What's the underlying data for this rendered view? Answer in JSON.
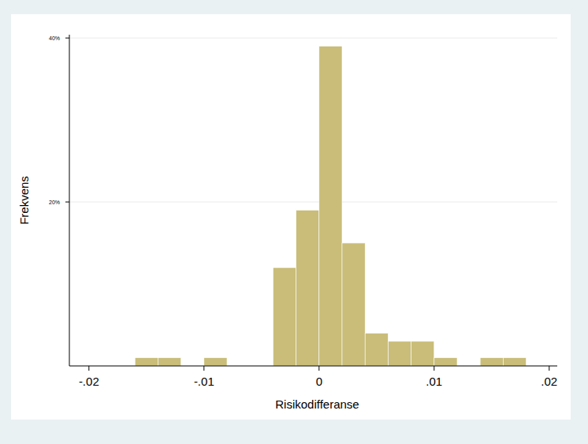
{
  "chart_data": {
    "type": "histogram",
    "x_label": "Risikodifferanse",
    "y_label": "Frekvens",
    "bins": [
      -0.016,
      -0.014,
      -0.012,
      -0.01,
      -0.008,
      -0.006,
      -0.004,
      -0.002,
      0,
      0.002,
      0.004,
      0.006,
      0.008,
      0.01,
      0.012,
      0.014,
      0.016,
      0.018
    ],
    "values": [
      1,
      1,
      0,
      1,
      0,
      0,
      12,
      19,
      39,
      15,
      4,
      3,
      3,
      1,
      0,
      1,
      1
    ],
    "color": "#c9bd79",
    "xlim": [
      -0.0217,
      0.0207
    ],
    "xticks": [
      {
        "value": -0.02,
        "label": "-.02"
      },
      {
        "value": -0.01,
        "label": "-.01"
      },
      0,
      {
        "value": 0.01,
        "label": ".01"
      },
      {
        "value": 0.02,
        "label": ".02"
      }
    ],
    "ylim": [
      0,
      40.4
    ],
    "yticks": [
      {
        "value": 20,
        "label": "20%"
      },
      {
        "value": 40,
        "label": "40%"
      }
    ],
    "grid": true
  }
}
